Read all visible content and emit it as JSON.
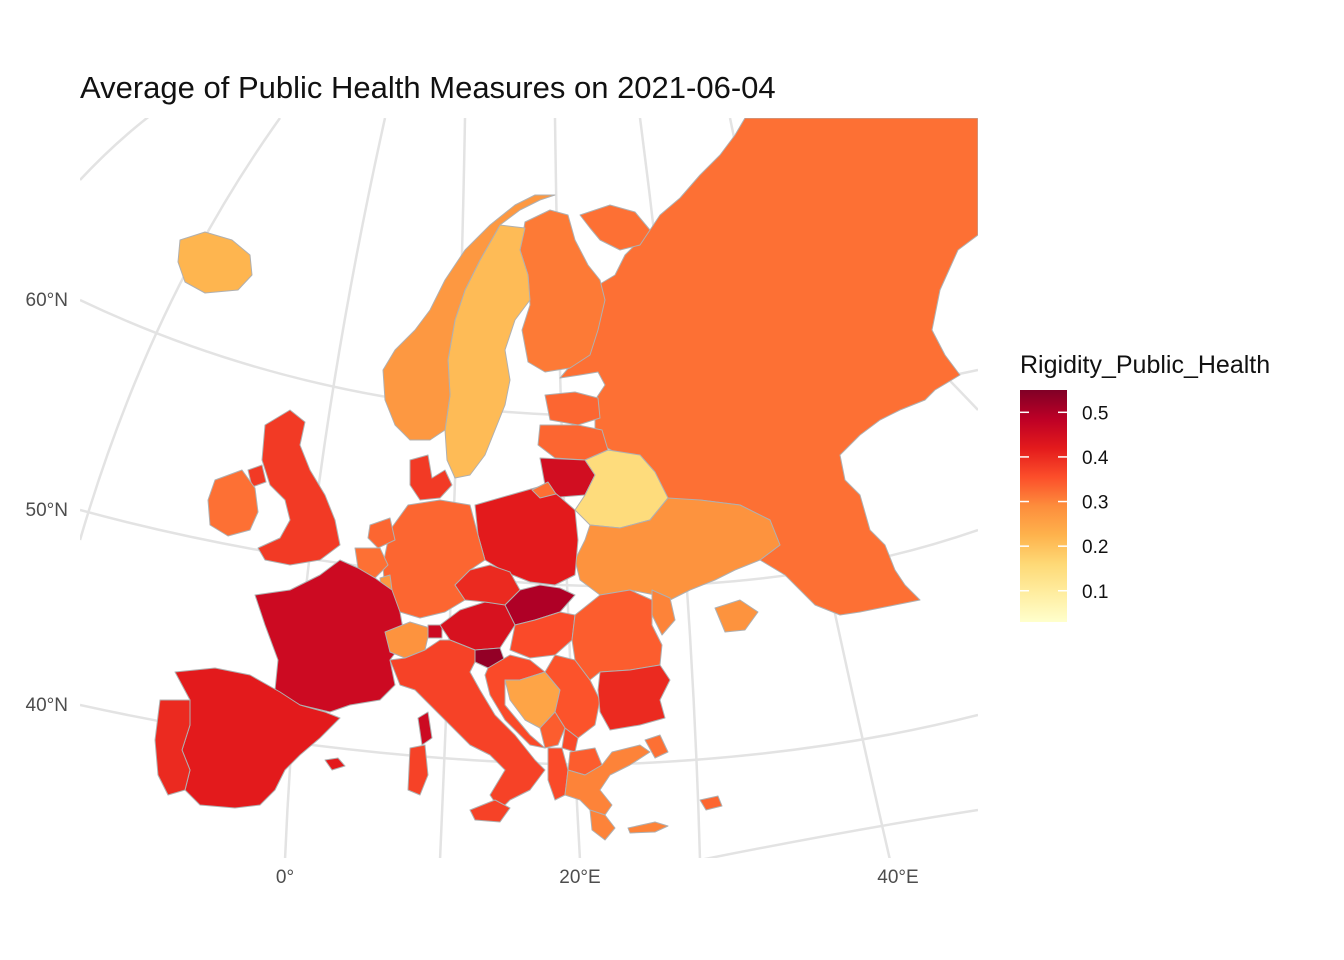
{
  "title": "Average of Public Health Measures on 2021-06-04",
  "legend": {
    "title": "Rigidity_Public_Health",
    "ticks": [
      "0.5",
      "0.4",
      "0.3",
      "0.2",
      "0.1"
    ],
    "tick_values": [
      0.5,
      0.4,
      0.3,
      0.2,
      0.1
    ],
    "range": [
      0.03,
      0.55
    ],
    "colors": [
      "#ffffcc",
      "#ffeda0",
      "#fed976",
      "#feb24c",
      "#fd8d3c",
      "#fc4e2a",
      "#e31a1c",
      "#bd0026",
      "#800026"
    ]
  },
  "axes": {
    "lat_labels": [
      "60°N",
      "50°N",
      "40°N"
    ],
    "lon_labels": [
      "0°",
      "20°E",
      "40°E"
    ]
  },
  "chart_data": {
    "type": "choropleth",
    "date": "2021-06-04",
    "variable": "Rigidity_Public_Health",
    "color_scale": "YlOrRd",
    "values": {
      "Iceland": 0.22,
      "Norway": 0.27,
      "Sweden": 0.21,
      "Finland": 0.31,
      "Russia": 0.32,
      "Estonia": 0.33,
      "Latvia": 0.33,
      "Lithuania": 0.45,
      "Belarus": 0.15,
      "Ukraine": 0.28,
      "Moldova": 0.3,
      "Poland": 0.42,
      "Germany": 0.33,
      "Denmark": 0.38,
      "Netherlands": 0.33,
      "Belgium": 0.32,
      "Luxembourg": 0.27,
      "United Kingdom": 0.38,
      "Ireland": 0.32,
      "France": 0.46,
      "Spain": 0.42,
      "Portugal": 0.4,
      "Switzerland": 0.28,
      "Austria": 0.44,
      "Czechia": 0.4,
      "Slovakia": 0.5,
      "Hungary": 0.36,
      "Slovenia": 0.53,
      "Croatia": 0.36,
      "Bosnia and Herzegovina": 0.25,
      "Serbia": 0.35,
      "Montenegro": 0.34,
      "Kosovo": 0.36,
      "North Macedonia": 0.34,
      "Albania": 0.36,
      "Greece": 0.3,
      "Romania": 0.34,
      "Bulgaria": 0.4,
      "Italy": 0.37,
      "Liechtenstein": 0.46,
      "Turkey": 0.32,
      "Cyprus": 0.33
    }
  }
}
